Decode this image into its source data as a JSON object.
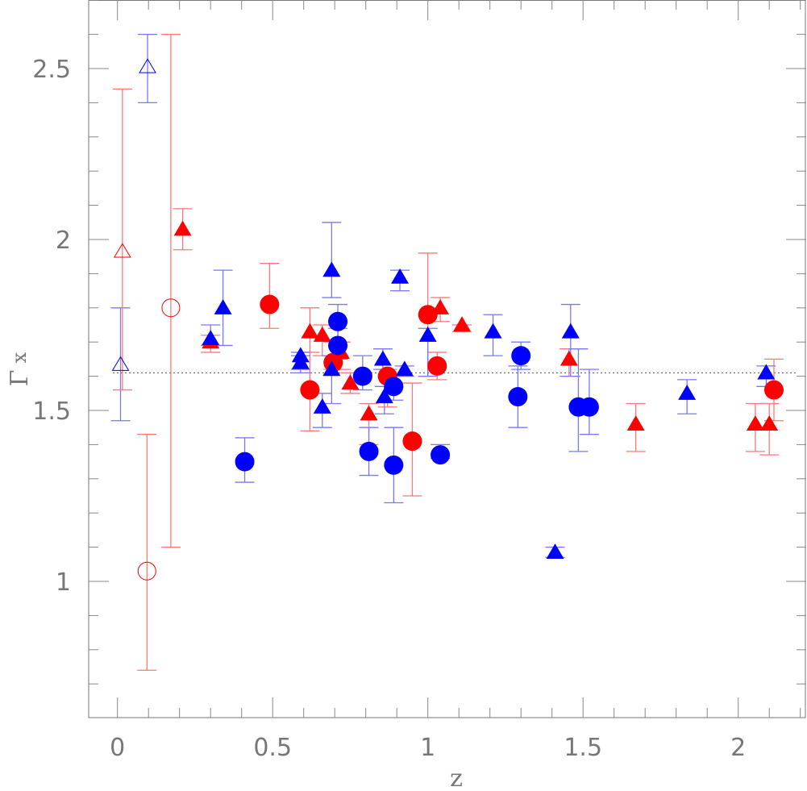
{
  "chart_data": {
    "type": "scatter",
    "title": "",
    "xlabel": "z",
    "ylabel": "Γ",
    "ylabel_subscript": "x",
    "xlim": [
      -0.096,
      2.22
    ],
    "ylim": [
      0.6,
      2.7
    ],
    "xticks": [
      0,
      0.5,
      1,
      1.5,
      2
    ],
    "xtick_labels": [
      "0",
      "0.5",
      "1",
      "1.5",
      "2"
    ],
    "yticks": [
      1,
      1.5,
      2,
      2.5
    ],
    "ytick_labels": [
      "1",
      "1.5",
      "2",
      "2.5"
    ],
    "grid": false,
    "reference_line": {
      "y": 1.61,
      "style": "dotted"
    },
    "colors": {
      "red": "#ff0000",
      "blue": "#0000ff",
      "red_err": "#ff7777",
      "blue_err": "#7777ff"
    },
    "series": [
      {
        "marker": "triangle",
        "fill": "open",
        "color": "blue",
        "points": [
          [
            0.01,
            1.634,
            1.47,
            1.8
          ],
          [
            0.097,
            2.505,
            2.4,
            2.6
          ]
        ]
      },
      {
        "marker": "triangle",
        "fill": "open",
        "color": "red",
        "points": [
          [
            0.016,
            1.965,
            1.56,
            2.44
          ]
        ]
      },
      {
        "marker": "circle",
        "fill": "open",
        "color": "red",
        "points": [
          [
            0.095,
            1.03,
            0.74,
            1.43
          ],
          [
            0.172,
            1.8,
            1.1,
            2.6
          ]
        ]
      },
      {
        "marker": "triangle",
        "fill": "filled",
        "color": "red",
        "points": [
          [
            0.21,
            2.03,
            1.97,
            2.09
          ],
          [
            0.3,
            1.7,
            1.67,
            1.72
          ],
          [
            0.62,
            1.73,
            1.56,
            1.8
          ],
          [
            0.66,
            1.72,
            1.66,
            1.75
          ],
          [
            0.72,
            1.67,
            1.62,
            1.7
          ],
          [
            0.75,
            1.58,
            1.55,
            1.61
          ],
          [
            0.81,
            1.49,
            1.4,
            1.52
          ],
          [
            1.04,
            1.8,
            1.76,
            1.83
          ],
          [
            1.11,
            1.75,
            1.73,
            1.75
          ],
          [
            1.455,
            1.65,
            1.6,
            1.68
          ],
          [
            1.67,
            1.46,
            1.38,
            1.52
          ],
          [
            2.055,
            1.46,
            1.38,
            1.52
          ],
          [
            2.1,
            1.46,
            1.37,
            1.52
          ]
        ]
      },
      {
        "marker": "circle",
        "fill": "filled",
        "color": "red",
        "points": [
          [
            0.49,
            1.81,
            1.74,
            1.93
          ],
          [
            0.62,
            1.56,
            1.44,
            1.67
          ],
          [
            0.695,
            1.64,
            1.62,
            1.7
          ],
          [
            0.87,
            1.6,
            1.51,
            1.62
          ],
          [
            0.95,
            1.41,
            1.25,
            1.58
          ],
          [
            1.0,
            1.78,
            1.6,
            1.96
          ],
          [
            1.03,
            1.63,
            1.59,
            1.67
          ],
          [
            2.115,
            1.56,
            1.47,
            1.65
          ]
        ]
      },
      {
        "marker": "triangle",
        "fill": "filled",
        "color": "blue",
        "points": [
          [
            0.3,
            1.71,
            1.69,
            1.75
          ],
          [
            0.34,
            1.8,
            1.69,
            1.91
          ],
          [
            0.59,
            1.66,
            1.62,
            1.67
          ],
          [
            0.59,
            1.64,
            1.61,
            1.66
          ],
          [
            0.66,
            1.51,
            1.45,
            1.55
          ],
          [
            0.69,
            1.91,
            1.83,
            2.05
          ],
          [
            0.69,
            1.62,
            1.52,
            1.66
          ],
          [
            0.855,
            1.65,
            1.62,
            1.68
          ],
          [
            0.86,
            1.54,
            1.49,
            1.57
          ],
          [
            0.925,
            1.62,
            1.6,
            1.63
          ],
          [
            0.91,
            1.89,
            1.85,
            1.91
          ],
          [
            1.0,
            1.72,
            1.6,
            1.74
          ],
          [
            1.21,
            1.73,
            1.66,
            1.78
          ],
          [
            1.46,
            1.73,
            1.6,
            1.81
          ],
          [
            1.41,
            1.085,
            1.07,
            1.1
          ],
          [
            1.835,
            1.55,
            1.49,
            1.59
          ],
          [
            2.09,
            1.61,
            1.57,
            1.63
          ]
        ]
      },
      {
        "marker": "circle",
        "fill": "filled",
        "color": "blue",
        "points": [
          [
            0.41,
            1.35,
            1.29,
            1.42
          ],
          [
            0.71,
            1.76,
            1.69,
            1.81
          ],
          [
            0.71,
            1.69,
            1.65,
            1.74
          ],
          [
            0.79,
            1.6,
            1.56,
            1.66
          ],
          [
            0.81,
            1.38,
            1.31,
            1.45
          ],
          [
            0.89,
            1.34,
            1.23,
            1.45
          ],
          [
            0.89,
            1.57,
            1.53,
            1.6
          ],
          [
            1.04,
            1.37,
            1.36,
            1.4
          ],
          [
            1.3,
            1.66,
            1.62,
            1.7
          ],
          [
            1.29,
            1.54,
            1.45,
            1.63
          ],
          [
            1.485,
            1.51,
            1.38,
            1.68
          ],
          [
            1.52,
            1.51,
            1.43,
            1.62
          ]
        ]
      }
    ]
  }
}
